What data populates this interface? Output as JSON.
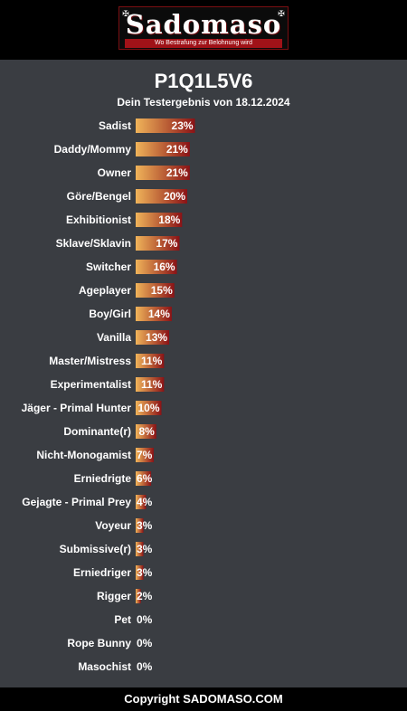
{
  "header": {
    "logo_text": "Sadomaso",
    "logo_tagline": "Wo Bestrafung zur Belohnung wird",
    "logo_ornament": "✠"
  },
  "chart_data": {
    "type": "bar",
    "orientation": "horizontal",
    "title": "P1Q1L5V6",
    "subtitle": "Dein Testergebnis von 18.12.2024",
    "categories": [
      "Sadist",
      "Daddy/Mommy",
      "Owner",
      "Göre/Bengel",
      "Exhibitionist",
      "Sklave/Sklavin",
      "Switcher",
      "Ageplayer",
      "Boy/Girl",
      "Vanilla",
      "Master/Mistress",
      "Experimentalist",
      "Jäger - Primal Hunter",
      "Dominante(r)",
      "Nicht-Monogamist",
      "Erniedrigte",
      "Gejagte - Primal Prey",
      "Voyeur",
      "Submissive(r)",
      "Erniedriger",
      "Rigger",
      "Pet",
      "Rope Bunny",
      "Masochist"
    ],
    "values": [
      23,
      21,
      21,
      20,
      18,
      17,
      16,
      15,
      14,
      13,
      11,
      11,
      10,
      8,
      7,
      6,
      4,
      3,
      3,
      3,
      2,
      0,
      0,
      0
    ],
    "value_labels": [
      "23%",
      "21%",
      "21%",
      "20%",
      "18%",
      "17%",
      "16%",
      "15%",
      "14%",
      "13%",
      "11%",
      "11%",
      "10%",
      "8%",
      "7%",
      "6%",
      "4%",
      "3%",
      "3%",
      "3%",
      "2%",
      "0%",
      "0%",
      "0%"
    ],
    "xlim": [
      0,
      100
    ],
    "grid": false,
    "colors": {
      "bar_start": "#f0b45a",
      "bar_end": "#8a1216"
    }
  },
  "footer": {
    "text": "Copyright SADOMASO.COM"
  }
}
